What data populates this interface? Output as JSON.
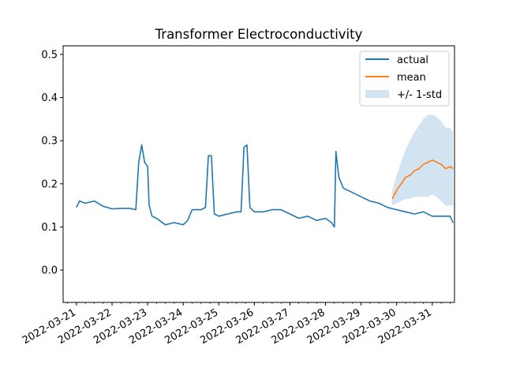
{
  "chart_data": {
    "type": "line",
    "title": "Transformer Electroconductivity",
    "xlabel": "",
    "ylabel": "",
    "x_tick_labels": [
      "2022-03-21",
      "2022-03-22",
      "2022-03-23",
      "2022-03-24",
      "2022-03-25",
      "2022-03-26",
      "2022-03-27",
      "2022-03-28",
      "2022-03-29",
      "2022-03-30",
      "2022-03-31"
    ],
    "y_tick_labels": [
      "0.0",
      "0.1",
      "0.2",
      "0.3",
      "0.4",
      "0.5"
    ],
    "y_ticks": [
      0.0,
      0.1,
      0.2,
      0.3,
      0.4,
      0.5
    ],
    "ylim": [
      -0.075,
      0.52
    ],
    "xlim": [
      "2022-03-20T15:00",
      "2022-03-31T15:00"
    ],
    "legend_position": "top-right",
    "grid": false,
    "series": [
      {
        "name": "actual",
        "color": "#1f77b4",
        "points": [
          [
            "2022-03-21T00:00",
            0.145
          ],
          [
            "2022-03-21T02:00",
            0.16
          ],
          [
            "2022-03-21T06:00",
            0.155
          ],
          [
            "2022-03-21T12:00",
            0.16
          ],
          [
            "2022-03-21T18:00",
            0.148
          ],
          [
            "2022-03-22T00:00",
            0.142
          ],
          [
            "2022-03-22T06:00",
            0.143
          ],
          [
            "2022-03-22T12:00",
            0.143
          ],
          [
            "2022-03-22T16:00",
            0.14
          ],
          [
            "2022-03-22T18:00",
            0.25
          ],
          [
            "2022-03-22T20:00",
            0.29
          ],
          [
            "2022-03-22T22:00",
            0.25
          ],
          [
            "2022-03-23T00:00",
            0.24
          ],
          [
            "2022-03-23T01:00",
            0.15
          ],
          [
            "2022-03-23T03:00",
            0.125
          ],
          [
            "2022-03-23T06:00",
            0.12
          ],
          [
            "2022-03-23T12:00",
            0.105
          ],
          [
            "2022-03-23T18:00",
            0.11
          ],
          [
            "2022-03-24T00:00",
            0.105
          ],
          [
            "2022-03-24T03:00",
            0.115
          ],
          [
            "2022-03-24T06:00",
            0.14
          ],
          [
            "2022-03-24T12:00",
            0.14
          ],
          [
            "2022-03-24T15:00",
            0.145
          ],
          [
            "2022-03-24T17:00",
            0.265
          ],
          [
            "2022-03-24T19:00",
            0.265
          ],
          [
            "2022-03-24T21:00",
            0.13
          ],
          [
            "2022-03-25T00:00",
            0.125
          ],
          [
            "2022-03-25T06:00",
            0.13
          ],
          [
            "2022-03-25T12:00",
            0.135
          ],
          [
            "2022-03-25T15:00",
            0.135
          ],
          [
            "2022-03-25T17:00",
            0.285
          ],
          [
            "2022-03-25T19:00",
            0.29
          ],
          [
            "2022-03-25T21:00",
            0.145
          ],
          [
            "2022-03-26T00:00",
            0.135
          ],
          [
            "2022-03-26T06:00",
            0.135
          ],
          [
            "2022-03-26T12:00",
            0.14
          ],
          [
            "2022-03-26T18:00",
            0.14
          ],
          [
            "2022-03-27T00:00",
            0.13
          ],
          [
            "2022-03-27T06:00",
            0.12
          ],
          [
            "2022-03-27T12:00",
            0.125
          ],
          [
            "2022-03-27T18:00",
            0.115
          ],
          [
            "2022-03-28T00:00",
            0.12
          ],
          [
            "2022-03-28T04:00",
            0.11
          ],
          [
            "2022-03-28T06:00",
            0.1
          ],
          [
            "2022-03-28T07:00",
            0.275
          ],
          [
            "2022-03-28T09:00",
            0.215
          ],
          [
            "2022-03-28T12:00",
            0.19
          ],
          [
            "2022-03-28T18:00",
            0.18
          ],
          [
            "2022-03-29T00:00",
            0.17
          ],
          [
            "2022-03-29T06:00",
            0.16
          ],
          [
            "2022-03-29T12:00",
            0.155
          ],
          [
            "2022-03-29T18:00",
            0.145
          ],
          [
            "2022-03-30T00:00",
            0.14
          ],
          [
            "2022-03-30T06:00",
            0.135
          ],
          [
            "2022-03-30T12:00",
            0.13
          ],
          [
            "2022-03-30T18:00",
            0.135
          ],
          [
            "2022-03-31T00:00",
            0.125
          ],
          [
            "2022-03-31T06:00",
            0.125
          ],
          [
            "2022-03-31T12:00",
            0.125
          ],
          [
            "2022-03-31T14:00",
            0.11
          ]
        ]
      },
      {
        "name": "mean",
        "color": "#ff7f0e",
        "points": [
          [
            "2022-03-29T21:00",
            0.165
          ],
          [
            "2022-03-30T00:00",
            0.185
          ],
          [
            "2022-03-30T03:00",
            0.2
          ],
          [
            "2022-03-30T06:00",
            0.215
          ],
          [
            "2022-03-30T09:00",
            0.22
          ],
          [
            "2022-03-30T12:00",
            0.23
          ],
          [
            "2022-03-30T15:00",
            0.235
          ],
          [
            "2022-03-30T18:00",
            0.245
          ],
          [
            "2022-03-30T21:00",
            0.25
          ],
          [
            "2022-03-31T00:00",
            0.255
          ],
          [
            "2022-03-31T03:00",
            0.25
          ],
          [
            "2022-03-31T06:00",
            0.245
          ],
          [
            "2022-03-31T09:00",
            0.235
          ],
          [
            "2022-03-31T12:00",
            0.24
          ],
          [
            "2022-03-31T14:00",
            0.235
          ]
        ]
      }
    ],
    "band": {
      "name": "+/- 1-std",
      "color": "#a6c8e4",
      "points": [
        [
          "2022-03-29T21:00",
          0.15,
          0.185
        ],
        [
          "2022-03-30T00:00",
          0.155,
          0.22
        ],
        [
          "2022-03-30T03:00",
          0.16,
          0.25
        ],
        [
          "2022-03-30T06:00",
          0.165,
          0.28
        ],
        [
          "2022-03-30T09:00",
          0.165,
          0.3
        ],
        [
          "2022-03-30T12:00",
          0.17,
          0.32
        ],
        [
          "2022-03-30T15:00",
          0.17,
          0.335
        ],
        [
          "2022-03-30T18:00",
          0.17,
          0.35
        ],
        [
          "2022-03-30T21:00",
          0.17,
          0.36
        ],
        [
          "2022-03-31T00:00",
          0.175,
          0.36
        ],
        [
          "2022-03-31T03:00",
          0.17,
          0.355
        ],
        [
          "2022-03-31T06:00",
          0.16,
          0.345
        ],
        [
          "2022-03-31T09:00",
          0.15,
          0.33
        ],
        [
          "2022-03-31T12:00",
          0.15,
          0.33
        ],
        [
          "2022-03-31T14:00",
          0.15,
          0.32
        ]
      ]
    }
  }
}
